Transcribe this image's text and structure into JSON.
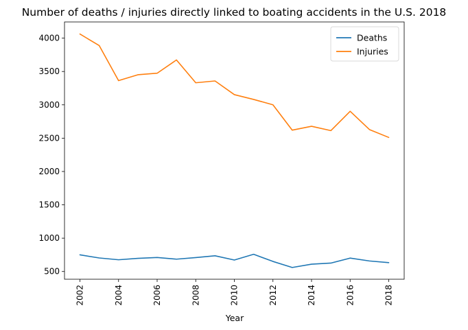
{
  "chart_data": {
    "type": "line",
    "title": "Number of deaths / injuries directly linked to boating accidents in the U.S. 2018",
    "xlabel": "Year",
    "ylabel": "",
    "x": [
      2002,
      2003,
      2004,
      2005,
      2006,
      2007,
      2008,
      2009,
      2010,
      2011,
      2012,
      2013,
      2014,
      2015,
      2016,
      2017,
      2018
    ],
    "xticks": [
      "2002",
      "2004",
      "2006",
      "2008",
      "2010",
      "2012",
      "2014",
      "2016",
      "2018"
    ],
    "yticks": [
      "500",
      "1000",
      "1500",
      "2000",
      "2500",
      "3000",
      "3500",
      "4000"
    ],
    "xlim": [
      2001.2,
      2018.8
    ],
    "ylim": [
      384,
      4243
    ],
    "grid": false,
    "legend_position": "top-right",
    "series": [
      {
        "name": "Deaths",
        "color": "#1f77b4",
        "values": [
          750,
          703,
          676,
          697,
          710,
          685,
          709,
          736,
          672,
          758,
          651,
          560,
          610,
          626,
          701,
          658,
          633
        ]
      },
      {
        "name": "Injuries",
        "color": "#ff7f0e",
        "values": [
          4062,
          3888,
          3363,
          3451,
          3474,
          3673,
          3331,
          3358,
          3153,
          3081,
          3000,
          2620,
          2678,
          2613,
          2903,
          2629,
          2511
        ]
      }
    ]
  }
}
